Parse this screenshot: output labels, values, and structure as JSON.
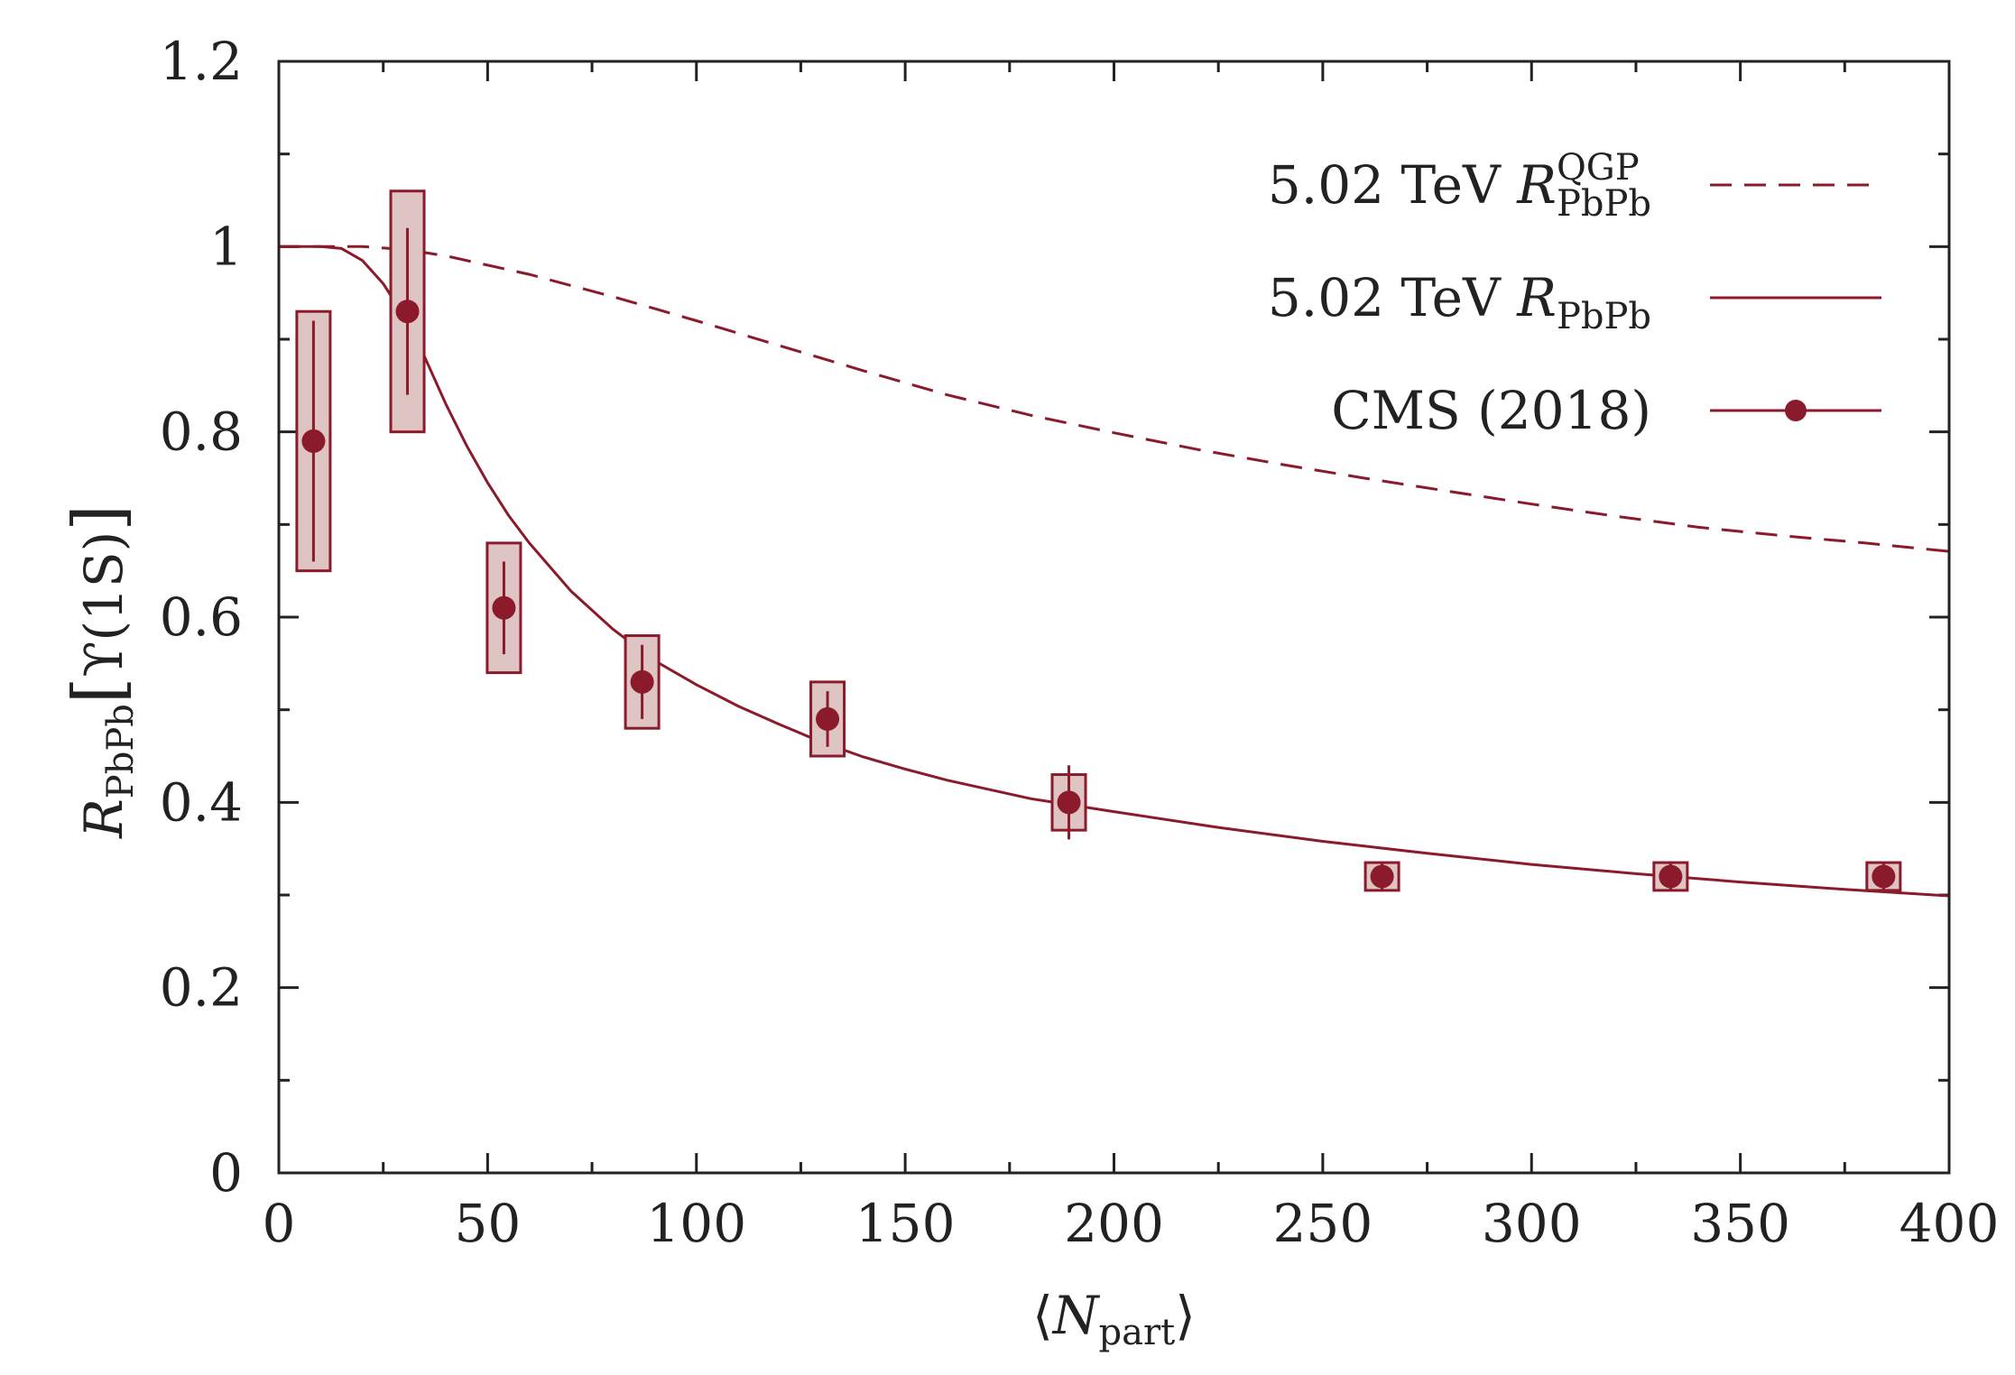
{
  "chart_data": {
    "type": "line",
    "title": "",
    "xlabel": {
      "open": "⟨",
      "var": "N",
      "sub": "part",
      "close": "⟩"
    },
    "ylabel": {
      "var": "R",
      "sub": "PbPb",
      "bracket_open": "[",
      "state": "ϒ(1S)",
      "bracket_close": "]"
    },
    "xlim": [
      0,
      400
    ],
    "ylim": [
      0,
      1.2
    ],
    "x_ticks": [
      0,
      50,
      100,
      150,
      200,
      250,
      300,
      350,
      400
    ],
    "x_tick_labels": [
      "0",
      "50",
      "100",
      "150",
      "200",
      "250",
      "300",
      "350",
      "400"
    ],
    "y_ticks": [
      0,
      0.2,
      0.4,
      0.6,
      0.8,
      1,
      1.2
    ],
    "y_tick_labels": [
      "0",
      "0.2",
      "0.4",
      "0.6",
      "0.8",
      "1",
      "1.2"
    ],
    "legend_position": "top-right",
    "colors": {
      "series": "#8b1a2b",
      "box_fill": "#dfc4c4",
      "axis": "#222222"
    },
    "series": [
      {
        "name": "5.02 TeV R_PbPb^QGP",
        "legend": {
          "prefix": "5.02 TeV ",
          "var": "R",
          "sub": "PbPb",
          "sup": "QGP"
        },
        "style": "dashed",
        "x": [
          0,
          10,
          20,
          30,
          40,
          50,
          60,
          70,
          80,
          90,
          100,
          120,
          140,
          160,
          180,
          200,
          220,
          240,
          260,
          280,
          300,
          320,
          340,
          360,
          380,
          400
        ],
        "y": [
          1.0,
          1.0,
          1.0,
          0.997,
          0.99,
          0.98,
          0.97,
          0.958,
          0.946,
          0.933,
          0.92,
          0.893,
          0.866,
          0.84,
          0.818,
          0.799,
          0.781,
          0.765,
          0.75,
          0.736,
          0.722,
          0.709,
          0.697,
          0.688,
          0.68,
          0.671
        ]
      },
      {
        "name": "5.02 TeV R_PbPb",
        "legend": {
          "prefix": "5.02 TeV ",
          "var": "R",
          "sub": "PbPb",
          "sup": ""
        },
        "style": "solid",
        "x": [
          0,
          5,
          10,
          15,
          20,
          25,
          30,
          35,
          40,
          45,
          50,
          55,
          60,
          70,
          80,
          90,
          100,
          110,
          120,
          130,
          140,
          150,
          160,
          180,
          200,
          225,
          250,
          275,
          300,
          325,
          350,
          375,
          400
        ],
        "y": [
          1.0,
          1.0,
          1.0,
          0.998,
          0.985,
          0.96,
          0.925,
          0.88,
          0.83,
          0.785,
          0.745,
          0.71,
          0.68,
          0.628,
          0.587,
          0.553,
          0.527,
          0.504,
          0.484,
          0.465,
          0.449,
          0.436,
          0.424,
          0.404,
          0.39,
          0.373,
          0.358,
          0.345,
          0.333,
          0.323,
          0.314,
          0.306,
          0.299
        ]
      },
      {
        "name": "CMS (2018)",
        "legend": {
          "prefix": "CMS (2018)",
          "var": "",
          "sub": "",
          "sup": ""
        },
        "style": "points",
        "x": [
          8.3,
          30.8,
          53.9,
          87.0,
          131.4,
          189.2,
          264.2,
          333.3,
          384.3
        ],
        "y": [
          0.79,
          0.93,
          0.61,
          0.53,
          0.49,
          0.4,
          0.32,
          0.32,
          0.32
        ],
        "stat_err": [
          0.13,
          0.09,
          0.05,
          0.04,
          0.03,
          0.04,
          0.015,
          0.015,
          0.015
        ],
        "syst_err": [
          0.14,
          0.13,
          0.07,
          0.05,
          0.04,
          0.03,
          0.015,
          0.015,
          0.015
        ],
        "box_halfwidth": [
          4,
          4,
          4,
          4,
          4,
          4,
          4,
          4,
          4
        ]
      }
    ]
  }
}
